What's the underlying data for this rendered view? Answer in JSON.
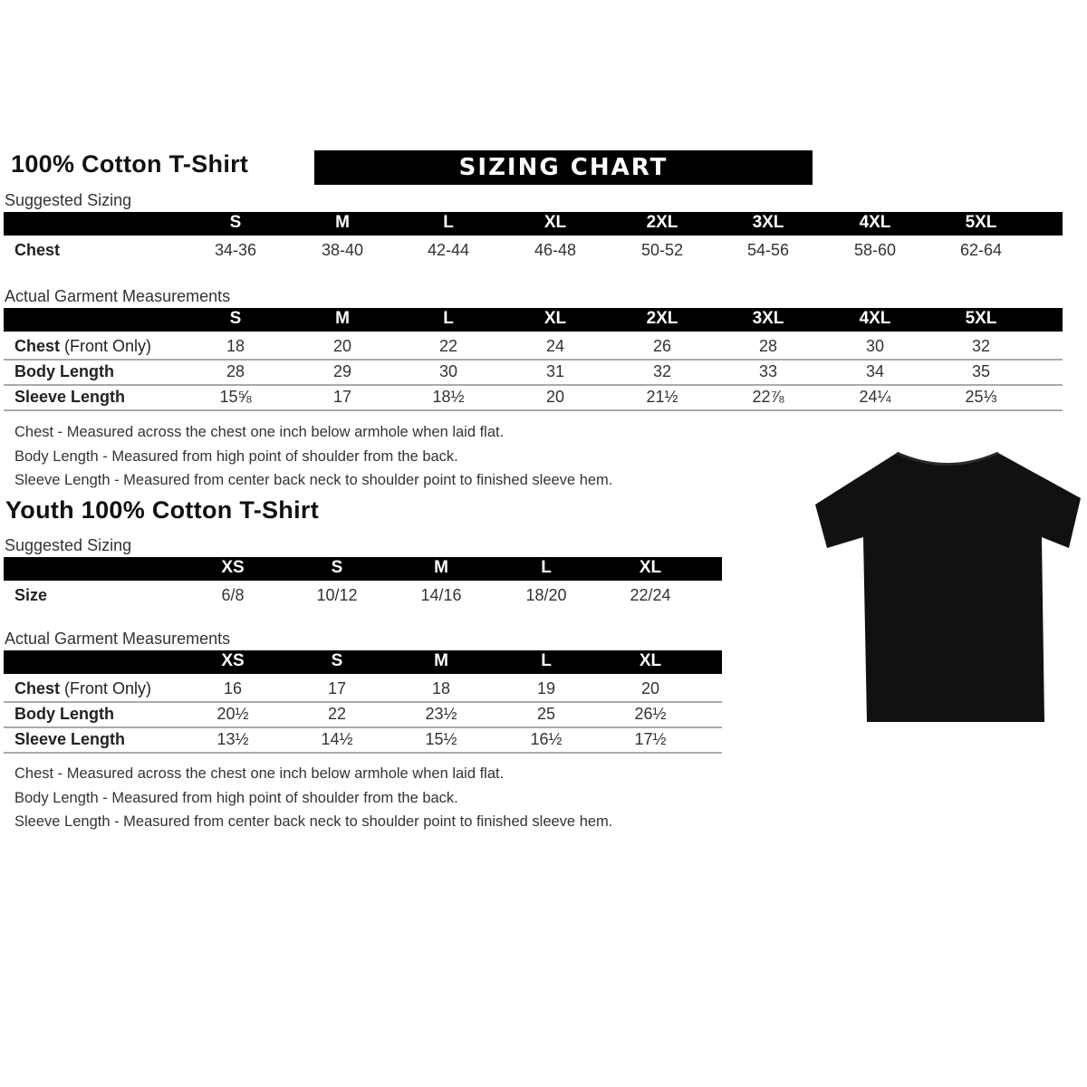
{
  "adult": {
    "title": "100% Cotton T-Shirt",
    "banner": "SIZING CHART",
    "suggested_label": "Suggested Sizing",
    "sizes": [
      "S",
      "M",
      "L",
      "XL",
      "2XL",
      "3XL",
      "4XL",
      "5XL"
    ],
    "suggested_rows": [
      {
        "label": "Chest",
        "values": [
          "34-36",
          "38-40",
          "42-44",
          "46-48",
          "50-52",
          "54-56",
          "58-60",
          "62-64"
        ]
      }
    ],
    "actual_label": "Actual Garment Measurements",
    "actual_rows": [
      {
        "label": "Chest",
        "label_note": " (Front Only)",
        "values": [
          "18",
          "20",
          "22",
          "24",
          "26",
          "28",
          "30",
          "32"
        ]
      },
      {
        "label": "Body Length",
        "values": [
          "28",
          "29",
          "30",
          "31",
          "32",
          "33",
          "34",
          "35"
        ]
      },
      {
        "label": "Sleeve Length",
        "values": [
          "15⅝",
          "17",
          "18½",
          "20",
          "21½",
          "22⅞",
          "24¼",
          "25⅓"
        ]
      }
    ],
    "notes": [
      "Chest - Measured across the chest one inch below armhole when laid flat.",
      "Body Length - Measured from high point of shoulder from the back.",
      "Sleeve Length - Measured from center back neck to shoulder point to finished sleeve hem."
    ]
  },
  "youth": {
    "title": "Youth 100% Cotton T-Shirt",
    "suggested_label": "Suggested Sizing",
    "sizes": [
      "XS",
      "S",
      "M",
      "L",
      "XL"
    ],
    "suggested_rows": [
      {
        "label": "Size",
        "values": [
          "6/8",
          "10/12",
          "14/16",
          "18/20",
          "22/24"
        ]
      }
    ],
    "actual_label": "Actual Garment Measurements",
    "actual_rows": [
      {
        "label": "Chest",
        "label_note": " (Front Only)",
        "values": [
          "16",
          "17",
          "18",
          "19",
          "20"
        ]
      },
      {
        "label": "Body Length",
        "values": [
          "20½",
          "22",
          "23½",
          "25",
          "26½"
        ]
      },
      {
        "label": "Sleeve Length",
        "values": [
          "13½",
          "14½",
          "15½",
          "16½",
          "17½"
        ]
      }
    ],
    "notes": [
      "Chest - Measured across the chest one inch below armhole when laid flat.",
      "Body Length - Measured from high point of shoulder from the back.",
      "Sleeve Length - Measured from center back neck to shoulder point to finished sleeve hem."
    ]
  },
  "image": {
    "icon": "tshirt-icon",
    "color": "#111111"
  }
}
